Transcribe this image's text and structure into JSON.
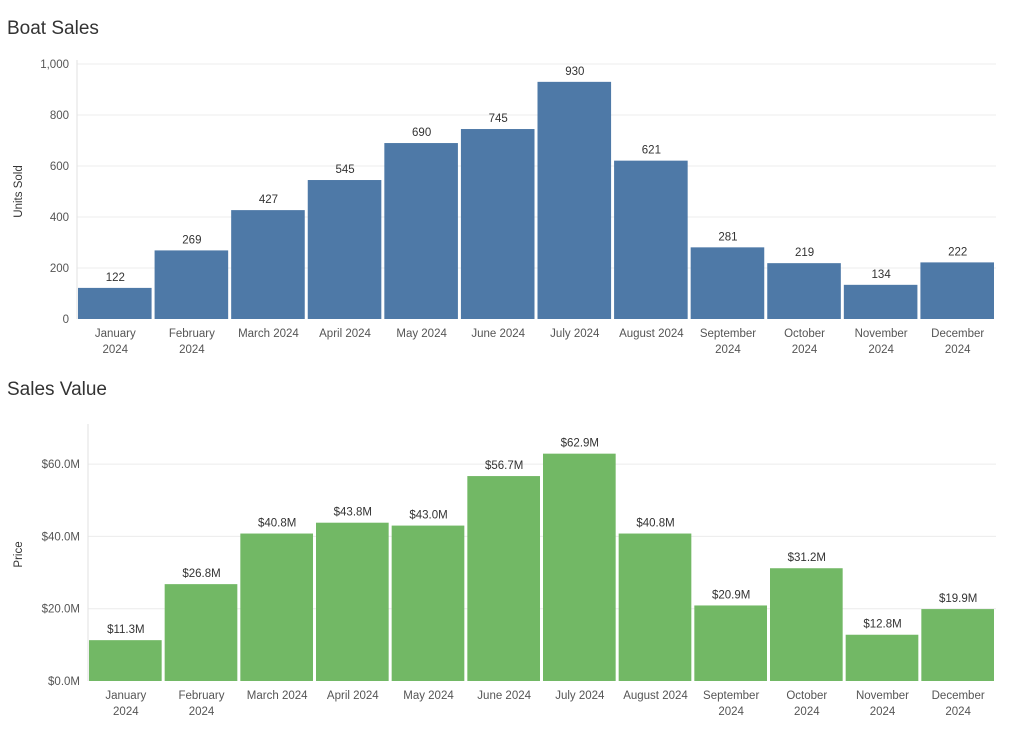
{
  "chart_data": [
    {
      "type": "bar",
      "title": "Boat Sales",
      "xlabel": "",
      "ylabel": "Units Sold",
      "ylim": [
        0,
        1000
      ],
      "yticks": [
        "0",
        "200",
        "400",
        "600",
        "800",
        "1,000"
      ],
      "ytick_values": [
        0,
        200,
        400,
        600,
        800,
        1000
      ],
      "categories": [
        [
          "January",
          "2024"
        ],
        [
          "February",
          "2024"
        ],
        [
          "March 2024"
        ],
        [
          "April 2024"
        ],
        [
          "May 2024"
        ],
        [
          "June 2024"
        ],
        [
          "July 2024"
        ],
        [
          "August 2024"
        ],
        [
          "September",
          "2024"
        ],
        [
          "October",
          "2024"
        ],
        [
          "November",
          "2024"
        ],
        [
          "December",
          "2024"
        ]
      ],
      "values": [
        122,
        269,
        427,
        545,
        690,
        745,
        930,
        621,
        281,
        219,
        134,
        222
      ],
      "labels": [
        "122",
        "269",
        "427",
        "545",
        "690",
        "745",
        "930",
        "621",
        "281",
        "219",
        "134",
        "222"
      ],
      "color": "#4e79a7",
      "grid": true
    },
    {
      "type": "bar",
      "title": "Sales Value",
      "xlabel": "",
      "ylabel": "Price",
      "ylim": [
        0,
        70
      ],
      "yticks": [
        "$0.0M",
        "$20.0M",
        "$40.0M",
        "$60.0M"
      ],
      "ytick_values": [
        0,
        20,
        40,
        60
      ],
      "categories": [
        [
          "January",
          "2024"
        ],
        [
          "February",
          "2024"
        ],
        [
          "March 2024"
        ],
        [
          "April 2024"
        ],
        [
          "May 2024"
        ],
        [
          "June 2024"
        ],
        [
          "July 2024"
        ],
        [
          "August 2024"
        ],
        [
          "September",
          "2024"
        ],
        [
          "October",
          "2024"
        ],
        [
          "November",
          "2024"
        ],
        [
          "December",
          "2024"
        ]
      ],
      "values": [
        11.3,
        26.8,
        40.8,
        43.8,
        43.0,
        56.7,
        62.9,
        40.8,
        20.9,
        31.2,
        12.8,
        19.9
      ],
      "labels": [
        "$11.3M",
        "$26.8M",
        "$40.8M",
        "$43.8M",
        "$43.0M",
        "$56.7M",
        "$62.9M",
        "$40.8M",
        "$20.9M",
        "$31.2M",
        "$12.8M",
        "$19.9M"
      ],
      "color": "#72b865",
      "grid": true
    }
  ]
}
